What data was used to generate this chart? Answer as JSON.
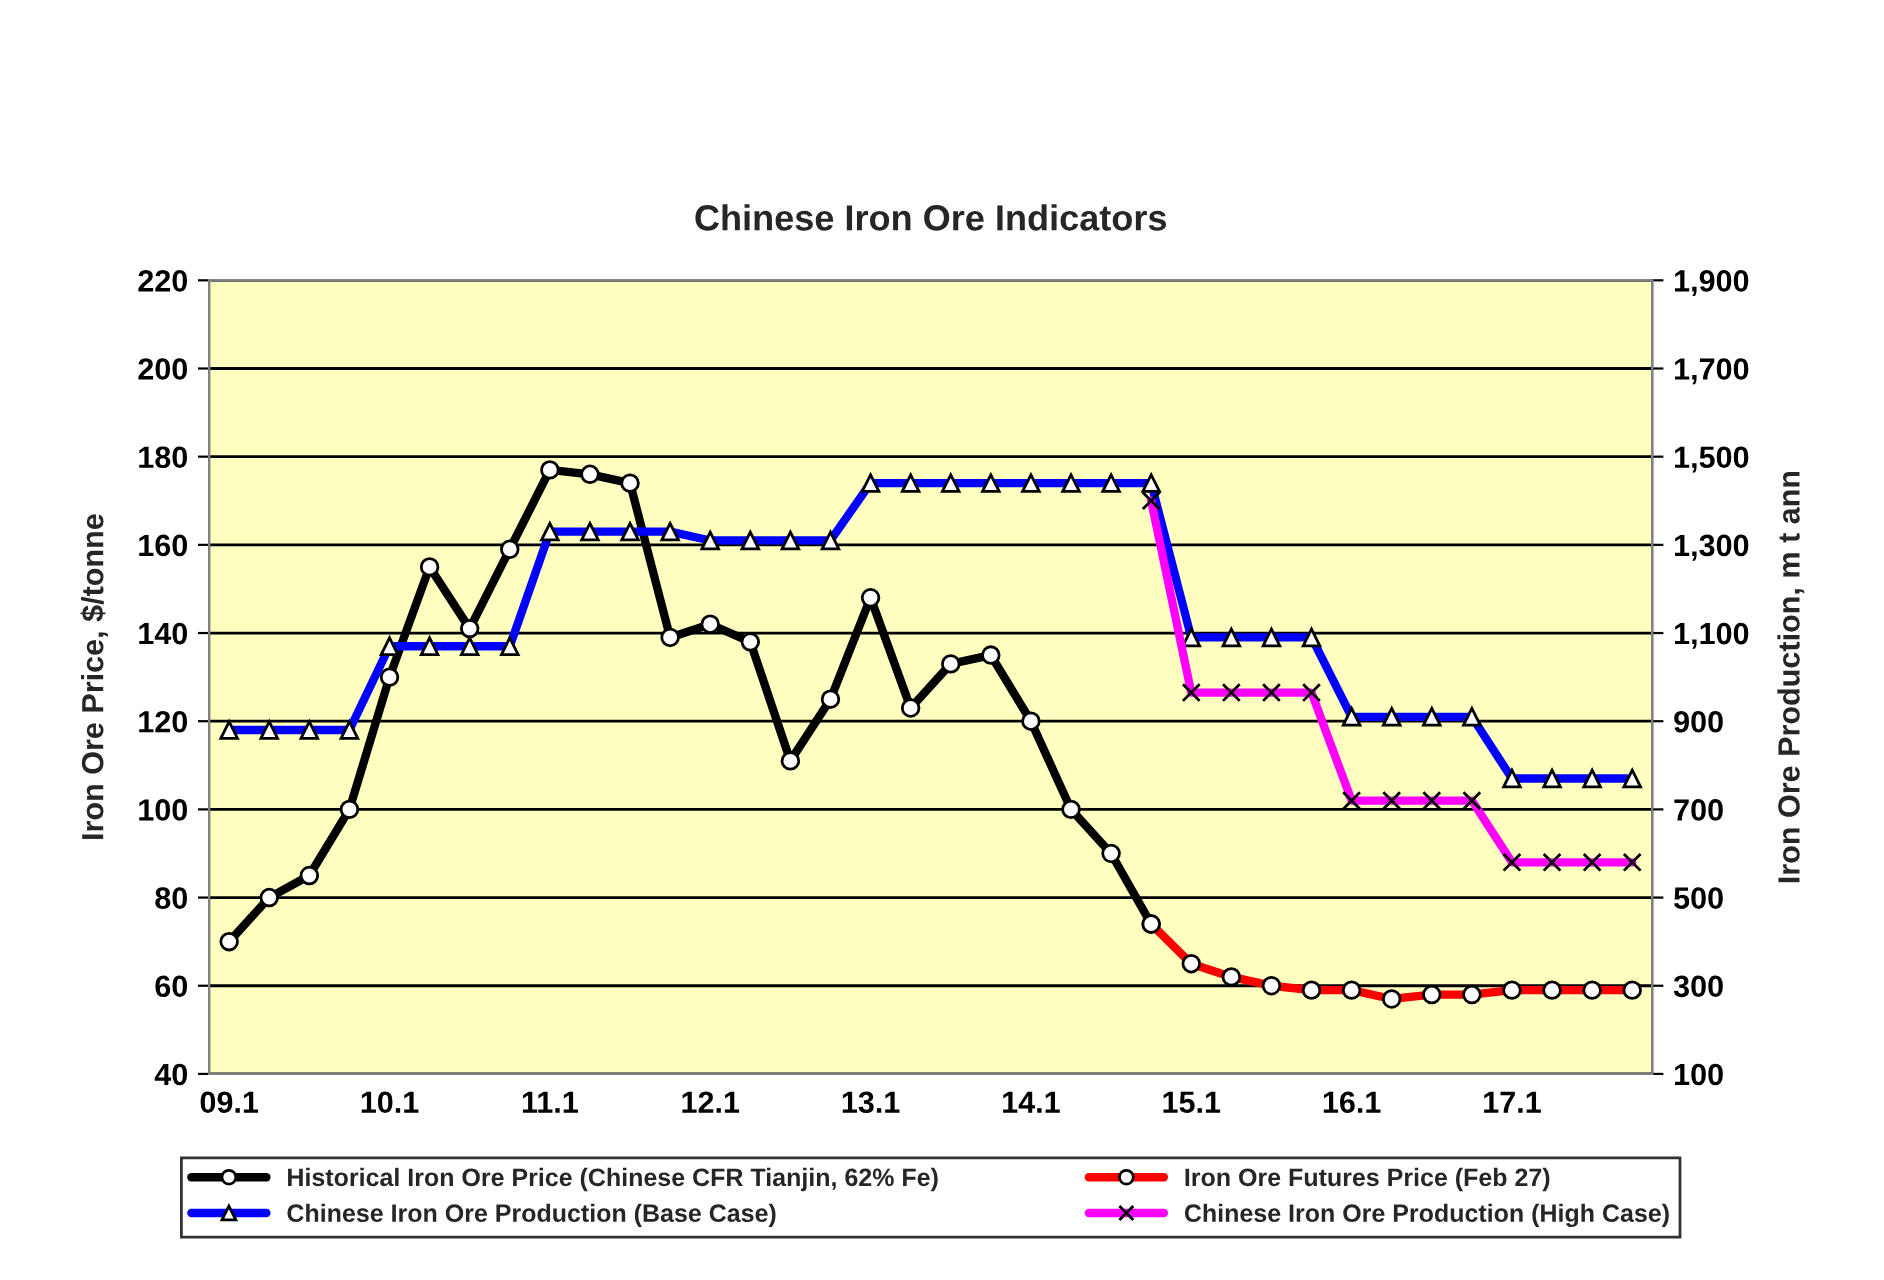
{
  "chart_data": {
    "type": "line",
    "title": "Chinese Iron Ore Indicators",
    "ylabel": "Iron Ore Price, $/tonne",
    "y2label": "Iron Ore Production, m t ann",
    "categories": [
      "09.1",
      null,
      null,
      null,
      "10.1",
      null,
      null,
      null,
      "11.1",
      null,
      null,
      null,
      "12.1",
      null,
      null,
      null,
      "13.1",
      null,
      null,
      null,
      "14.1",
      null,
      null,
      null,
      "15.1",
      null,
      null,
      null,
      "16.1",
      null,
      null,
      null,
      "17.1",
      null,
      null,
      null
    ],
    "series": [
      {
        "name": "Historical Iron Ore Price (Chinese CFR Tianjin, 62% Fe)",
        "color": "#000000",
        "marker": "circle",
        "values": [
          70,
          80,
          85,
          100,
          130,
          155,
          141,
          159,
          177,
          176,
          174,
          139,
          142,
          138,
          111,
          125,
          148,
          123,
          133,
          135,
          120,
          100,
          90,
          74,
          null,
          null,
          null,
          null,
          null,
          null,
          null,
          null,
          null,
          null,
          null,
          null
        ]
      },
      {
        "name": "Chinese Iron Ore Production (Base Case)",
        "color": "#0000ff",
        "marker": "triangle",
        "axis": "y2",
        "values": [
          880,
          880,
          880,
          880,
          1070,
          1070,
          1070,
          1070,
          1330,
          1330,
          1330,
          1330,
          1310,
          1310,
          1310,
          1310,
          1440,
          1440,
          1440,
          1440,
          1440,
          1440,
          1440,
          1440,
          1090,
          1090,
          1090,
          1090,
          910,
          910,
          910,
          910,
          770,
          770,
          770,
          770
        ]
      },
      {
        "name": "Iron Ore Futures Price (Feb 27)",
        "color": "#ff0000",
        "marker": "circle",
        "values": [
          null,
          null,
          null,
          null,
          null,
          null,
          null,
          null,
          null,
          null,
          null,
          null,
          null,
          null,
          null,
          null,
          null,
          null,
          null,
          null,
          null,
          null,
          null,
          74,
          65,
          62,
          60,
          59,
          59,
          57,
          58,
          58,
          59,
          59,
          59,
          59
        ]
      },
      {
        "name": "Chinese Iron Ore Production (High Case)",
        "color": "#ff00ff",
        "marker": "cross",
        "axis": "y2",
        "values": [
          null,
          null,
          null,
          null,
          null,
          null,
          null,
          null,
          null,
          null,
          null,
          null,
          null,
          null,
          null,
          null,
          null,
          null,
          null,
          null,
          null,
          null,
          null,
          1400,
          965,
          965,
          965,
          965,
          720,
          720,
          720,
          720,
          580,
          580,
          580,
          580
        ]
      }
    ],
    "ylim": [
      40,
      220
    ],
    "yticks": [
      40,
      60,
      80,
      100,
      120,
      140,
      160,
      180,
      200,
      220
    ],
    "y2lim": [
      100,
      1900
    ],
    "y2ticks": [
      {
        "value": 100,
        "label": "100"
      },
      {
        "value": 300,
        "label": "300"
      },
      {
        "value": 500,
        "label": "500"
      },
      {
        "value": 700,
        "label": "700"
      },
      {
        "value": 900,
        "label": "900"
      },
      {
        "value": 1100,
        "label": "1,100"
      },
      {
        "value": 1300,
        "label": "1,300"
      },
      {
        "value": 1500,
        "label": "1,500"
      },
      {
        "value": 1700,
        "label": "1,700"
      },
      {
        "value": 1900,
        "label": "1,900"
      }
    ],
    "grid": true,
    "legend": "bottom",
    "line_style": "solid"
  }
}
